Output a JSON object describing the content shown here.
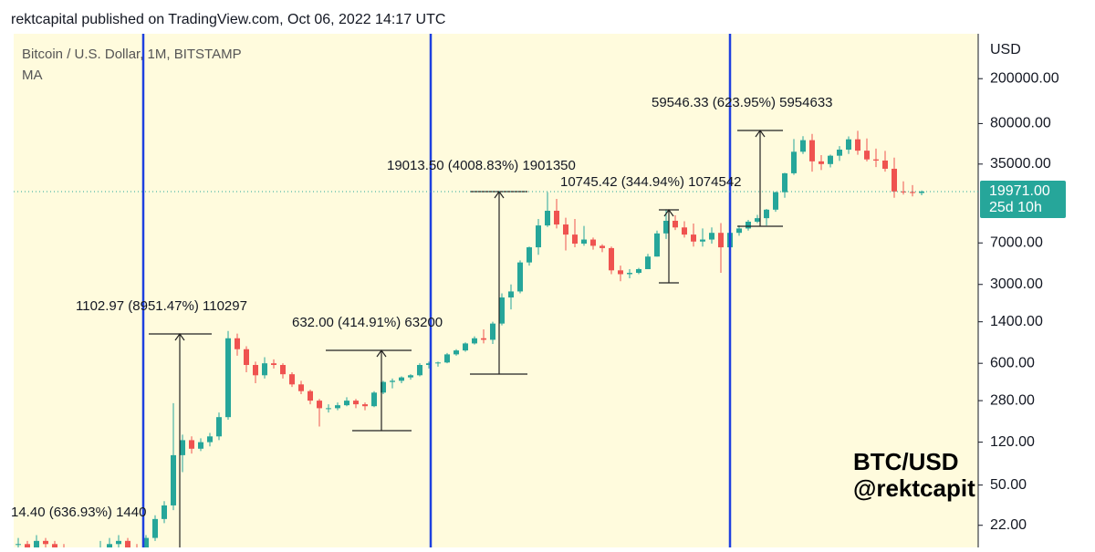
{
  "header": "rektcapital published on TradingView.com, Oct 06, 2022 14:17 UTC",
  "chart_data": {
    "type": "candlestick",
    "title": "Bitcoin / U.S. Dollar, 1M, BITSTAMP",
    "indicator": "MA",
    "y_axis_label": "USD",
    "log_scale": true,
    "up_color": "#26a69a",
    "down_color": "#ef5350",
    "ylim": [
      14,
      500000
    ],
    "yticks": [
      {
        "value": 200000,
        "label": "200000.00"
      },
      {
        "value": 80000,
        "label": "80000.00"
      },
      {
        "value": 35000,
        "label": "35000.00"
      },
      {
        "value": 7000,
        "label": "7000.00"
      },
      {
        "value": 3000,
        "label": "3000.00"
      },
      {
        "value": 1400,
        "label": "1400.00"
      },
      {
        "value": 600,
        "label": "600.00"
      },
      {
        "value": 280,
        "label": "280.00"
      },
      {
        "value": 120,
        "label": "120.00"
      },
      {
        "value": 50,
        "label": "50.00"
      },
      {
        "value": 22,
        "label": "22.00"
      }
    ],
    "last_price": {
      "value": 19971,
      "label": "19971.00"
    },
    "countdown": "25d 10h",
    "annotations": [
      "14.40 (636.93%) 1440",
      "1102.97 (8951.47%) 110297",
      "632.00 (414.91%) 63200",
      "19013.50 (4008.83%) 1901350",
      "10745.42 (344.94%) 1074542",
      "59546.33 (623.95%) 5954633"
    ],
    "watermark": [
      "BTC/USD",
      "@rektcapit"
    ],
    "candles": [
      [
        15,
        17,
        13,
        15
      ],
      [
        15,
        16,
        13,
        14
      ],
      [
        14,
        18,
        13,
        16
      ],
      [
        16,
        17,
        14,
        15
      ],
      [
        15,
        16,
        13,
        14
      ],
      [
        14,
        15,
        12,
        13
      ],
      [
        13,
        14,
        11,
        12
      ],
      [
        12,
        13,
        11,
        12
      ],
      [
        12,
        14,
        11,
        13
      ],
      [
        13,
        16,
        12,
        14
      ],
      [
        14,
        17,
        13,
        15
      ],
      [
        15,
        18,
        14,
        16
      ],
      [
        16,
        17,
        13,
        14
      ],
      [
        14,
        15,
        12,
        13
      ],
      [
        13,
        18,
        12,
        17
      ],
      [
        17,
        27,
        16,
        25
      ],
      [
        25,
        36,
        23,
        33
      ],
      [
        33,
        266,
        30,
        92
      ],
      [
        92,
        140,
        65,
        125
      ],
      [
        125,
        135,
        95,
        105
      ],
      [
        105,
        130,
        100,
        120
      ],
      [
        120,
        145,
        110,
        135
      ],
      [
        135,
        220,
        125,
        200
      ],
      [
        200,
        1160,
        190,
        1000
      ],
      [
        1000,
        1100,
        700,
        800
      ],
      [
        800,
        850,
        500,
        580
      ],
      [
        580,
        620,
        400,
        470
      ],
      [
        470,
        680,
        440,
        600
      ],
      [
        600,
        650,
        540,
        580
      ],
      [
        580,
        600,
        440,
        480
      ],
      [
        480,
        500,
        370,
        390
      ],
      [
        390,
        420,
        320,
        340
      ],
      [
        340,
        350,
        260,
        280
      ],
      [
        280,
        290,
        165,
        240
      ],
      [
        240,
        260,
        220,
        240
      ],
      [
        240,
        270,
        230,
        255
      ],
      [
        255,
        300,
        250,
        280
      ],
      [
        280,
        290,
        240,
        260
      ],
      [
        260,
        270,
        230,
        250
      ],
      [
        250,
        340,
        245,
        330
      ],
      [
        330,
        420,
        320,
        410
      ],
      [
        410,
        440,
        360,
        420
      ],
      [
        420,
        460,
        400,
        450
      ],
      [
        450,
        480,
        430,
        470
      ],
      [
        470,
        600,
        460,
        580
      ],
      [
        580,
        620,
        540,
        600
      ],
      [
        600,
        620,
        560,
        610
      ],
      [
        610,
        740,
        600,
        720
      ],
      [
        720,
        800,
        700,
        780
      ],
      [
        780,
        920,
        760,
        900
      ],
      [
        900,
        1040,
        880,
        1000
      ],
      [
        1000,
        1200,
        900,
        970
      ],
      [
        970,
        1400,
        890,
        1350
      ],
      [
        1350,
        2500,
        1300,
        2300
      ],
      [
        2300,
        3000,
        1800,
        2600
      ],
      [
        2600,
        4900,
        2500,
        4700
      ],
      [
        4700,
        6500,
        4400,
        6400
      ],
      [
        6400,
        11400,
        5500,
        10000
      ],
      [
        10000,
        19700,
        9700,
        13500
      ],
      [
        13500,
        17200,
        9400,
        10200
      ],
      [
        10200,
        11700,
        6000,
        8300
      ],
      [
        8300,
        11400,
        6400,
        6900
      ],
      [
        6900,
        9900,
        6600,
        7500
      ],
      [
        7500,
        7800,
        6100,
        6600
      ],
      [
        6600,
        6800,
        5800,
        6300
      ],
      [
        6300,
        6500,
        3700,
        4000
      ],
      [
        4000,
        4400,
        3200,
        3700
      ],
      [
        3700,
        4100,
        3400,
        3800
      ],
      [
        3800,
        4200,
        3700,
        4100
      ],
      [
        4100,
        5600,
        4100,
        5300
      ],
      [
        5300,
        9000,
        5300,
        8500
      ],
      [
        8500,
        13900,
        7600,
        11000
      ],
      [
        11000,
        12300,
        9100,
        9600
      ],
      [
        9600,
        10900,
        7800,
        8300
      ],
      [
        8300,
        10400,
        6500,
        7200
      ],
      [
        7200,
        9400,
        6500,
        7500
      ],
      [
        7500,
        9600,
        6900,
        8600
      ],
      [
        8600,
        10500,
        3800,
        6400
      ],
      [
        6400,
        9400,
        6200,
        8600
      ],
      [
        8600,
        10000,
        8100,
        9400
      ],
      [
        9400,
        11200,
        9000,
        10800
      ],
      [
        10800,
        12400,
        10500,
        11600
      ],
      [
        11600,
        14000,
        10000,
        13800
      ],
      [
        13800,
        19900,
        13200,
        19700
      ],
      [
        19700,
        29300,
        17600,
        29000
      ],
      [
        29000,
        58300,
        28100,
        45000
      ],
      [
        45000,
        61800,
        43000,
        57000
      ],
      [
        57000,
        64800,
        30000,
        37000
      ],
      [
        37000,
        42000,
        31000,
        35000
      ],
      [
        35000,
        42400,
        32700,
        41500
      ],
      [
        41500,
        50500,
        37300,
        47000
      ],
      [
        47000,
        61500,
        43000,
        58000
      ],
      [
        58000,
        69000,
        42300,
        46000
      ],
      [
        46000,
        59000,
        37000,
        38500
      ],
      [
        38500,
        48000,
        32900,
        37600
      ],
      [
        37600,
        45800,
        30000,
        31800
      ],
      [
        31800,
        39900,
        17600,
        20000
      ],
      [
        20000,
        24600,
        18800,
        19800
      ],
      [
        19800,
        22800,
        18100,
        19400
      ],
      [
        19400,
        20400,
        18500,
        19971
      ]
    ]
  }
}
